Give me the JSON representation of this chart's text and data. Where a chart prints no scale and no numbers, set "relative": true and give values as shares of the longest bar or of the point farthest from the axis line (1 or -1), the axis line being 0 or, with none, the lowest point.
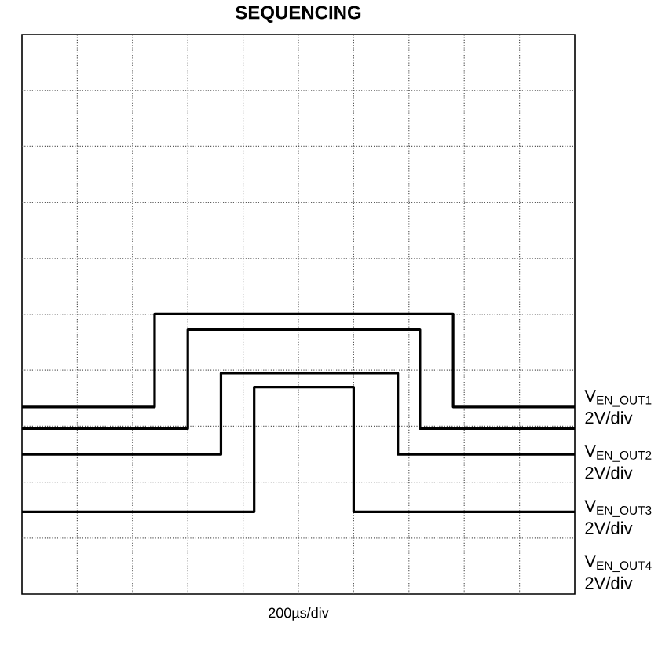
{
  "chart_data": {
    "type": "step",
    "title": "SEQUENCING",
    "annotations": [
      "200µs/div"
    ],
    "relative": true,
    "grid": true,
    "categories": [
      null,
      null,
      null,
      null,
      null,
      null,
      null,
      null,
      null,
      null,
      null,
      null,
      null,
      null,
      null,
      null,
      null,
      null,
      null,
      null,
      null,
      null,
      null,
      null,
      null,
      null,
      null,
      null,
      null,
      null,
      null,
      null,
      null,
      null,
      null,
      null,
      null,
      null,
      null,
      null,
      null,
      null,
      null,
      null,
      null,
      null,
      null,
      null,
      null,
      null,
      null
    ],
    "series": [
      {
        "name": "V$_{EN_OUT1}$ 2V/div",
        "color": "#000000",
        "values": [
          0.53,
          0.53,
          0.53,
          0.53,
          0.53,
          0.53,
          0.53,
          0.53,
          0.53,
          0.53,
          0.53,
          0.53,
          1,
          1,
          1,
          1,
          1,
          1,
          1,
          1,
          1,
          1,
          1,
          1,
          1,
          1,
          1,
          1,
          1,
          1,
          1,
          1,
          1,
          1,
          1,
          1,
          1,
          1,
          1,
          0.53,
          0.53,
          0.53,
          0.53,
          0.53,
          0.53,
          0.53,
          0.53,
          0.53,
          0.53,
          0.53,
          0.53
        ]
      },
      {
        "name": "V$_{EN_OUT2}$ 2V/div",
        "color": "#000000",
        "values": [
          0.42,
          0.42,
          0.42,
          0.42,
          0.42,
          0.42,
          0.42,
          0.42,
          0.42,
          0.42,
          0.42,
          0.42,
          0.42,
          0.42,
          0.42,
          0.92,
          0.92,
          0.92,
          0.92,
          0.92,
          0.92,
          0.92,
          0.92,
          0.92,
          0.92,
          0.92,
          0.92,
          0.92,
          0.92,
          0.92,
          0.92,
          0.92,
          0.92,
          0.92,
          0.92,
          0.92,
          0.42,
          0.42,
          0.42,
          0.42,
          0.42,
          0.42,
          0.42,
          0.42,
          0.42,
          0.42,
          0.42,
          0.42,
          0.42,
          0.42,
          0.42
        ]
      },
      {
        "name": "V$_{EN_OUT3}$ 2V/div",
        "color": "#000000",
        "values": [
          0.29,
          0.29,
          0.29,
          0.29,
          0.29,
          0.29,
          0.29,
          0.29,
          0.29,
          0.29,
          0.29,
          0.29,
          0.29,
          0.29,
          0.29,
          0.29,
          0.29,
          0.29,
          0.7,
          0.7,
          0.7,
          0.7,
          0.7,
          0.7,
          0.7,
          0.7,
          0.7,
          0.7,
          0.7,
          0.7,
          0.7,
          0.7,
          0.7,
          0.7,
          0.29,
          0.29,
          0.29,
          0.29,
          0.29,
          0.29,
          0.29,
          0.29,
          0.29,
          0.29,
          0.29,
          0.29,
          0.29,
          0.29,
          0.29,
          0.29,
          0.29
        ]
      },
      {
        "name": "V$_{EN_OUT4}$ 2V/div",
        "color": "#000000",
        "values": [
          0,
          0,
          0,
          0,
          0,
          0,
          0,
          0,
          0,
          0,
          0,
          0,
          0,
          0,
          0,
          0,
          0,
          0,
          0,
          0,
          0,
          0.63,
          0.63,
          0.63,
          0.63,
          0.63,
          0.63,
          0.63,
          0.63,
          0.63,
          0,
          0,
          0,
          0,
          0,
          0,
          0,
          0,
          0,
          0,
          0,
          0,
          0,
          0,
          0,
          0,
          0,
          0,
          0,
          0,
          0
        ]
      }
    ]
  }
}
